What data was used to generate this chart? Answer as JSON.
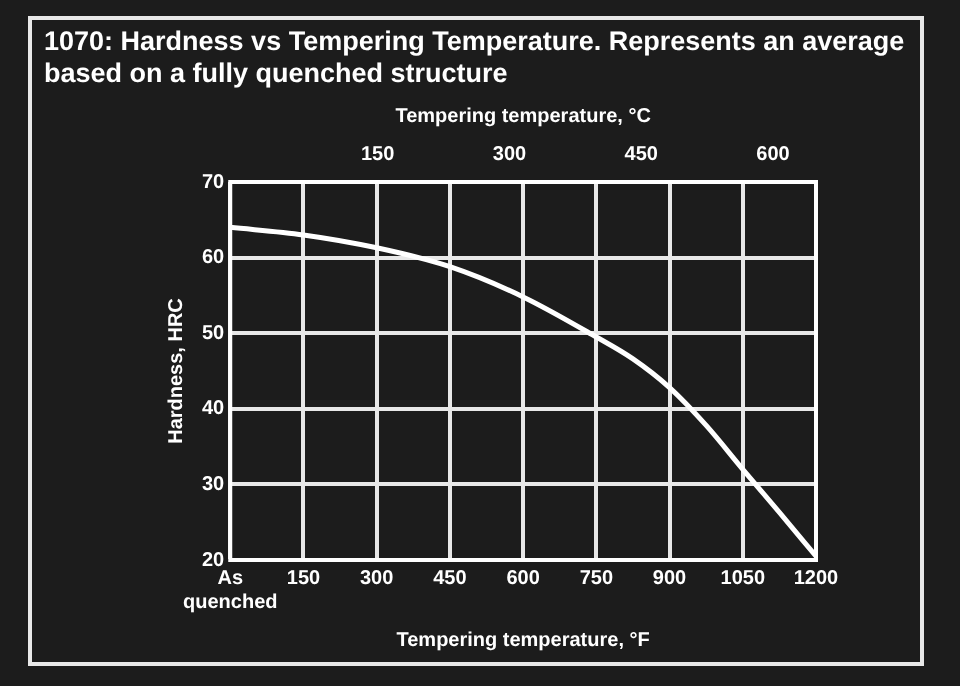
{
  "chart_data": {
    "type": "line",
    "title": "1070: Hardness vs Tempering Temperature. Represents an average based on a fully quenched structure",
    "xlabel": "Tempering temperature, °F",
    "x2label": "Tempering temperature, °C",
    "ylabel": "Hardness, HRC",
    "series": [
      {
        "color": "#ffffff",
        "x": [
          0,
          150,
          300,
          450,
          600,
          750,
          825,
          900,
          975,
          1050,
          1125,
          1200
        ],
        "values": [
          64,
          63,
          61.3,
          58.8,
          54.8,
          49.5,
          46.6,
          42.8,
          37.8,
          32,
          26.3,
          20.5
        ]
      }
    ],
    "xlim": [
      0,
      1200
    ],
    "xticks": [
      {
        "value": 0,
        "label": "As quenched"
      },
      150,
      300,
      450,
      600,
      750,
      900,
      1050,
      1200
    ],
    "x2lim": [
      -17.8,
      648.9
    ],
    "x2ticks": [
      150,
      300,
      450,
      600
    ],
    "ylim": [
      20,
      70
    ],
    "yticks": [
      20,
      30,
      40,
      50,
      60,
      70
    ],
    "grid": true,
    "legend": false,
    "marker": "none",
    "line_style": "solid"
  }
}
